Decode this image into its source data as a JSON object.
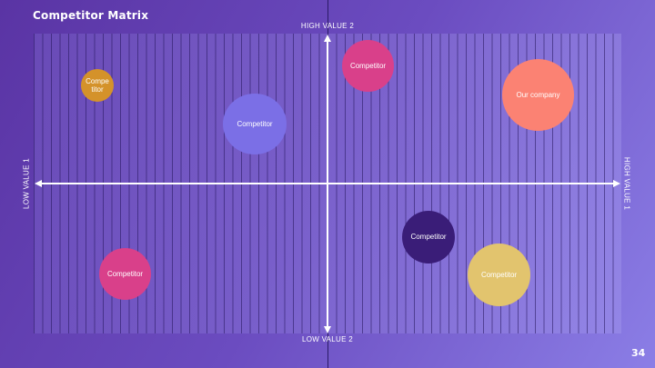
{
  "slide": {
    "title": "Competitor Matrix",
    "page_number": "34"
  },
  "axes": {
    "top": "HIGH VALUE 2",
    "bottom": "LOW VALUE 2",
    "left": "LOW VALUE 1",
    "right": "HIGH VALUE 1"
  },
  "bubbles": [
    {
      "label": "Compe\ntitor",
      "color": "#d4922a"
    },
    {
      "label": "Competitor",
      "color": "#7b6fe6"
    },
    {
      "label": "Competitor",
      "color": "#d9408a"
    },
    {
      "label": "Our company",
      "color": "#fb8273"
    },
    {
      "label": "Competitor",
      "color": "#3a1d78"
    },
    {
      "label": "Competitor",
      "color": "#e2c46e"
    },
    {
      "label": "Competitor",
      "color": "#d9408a"
    }
  ]
}
